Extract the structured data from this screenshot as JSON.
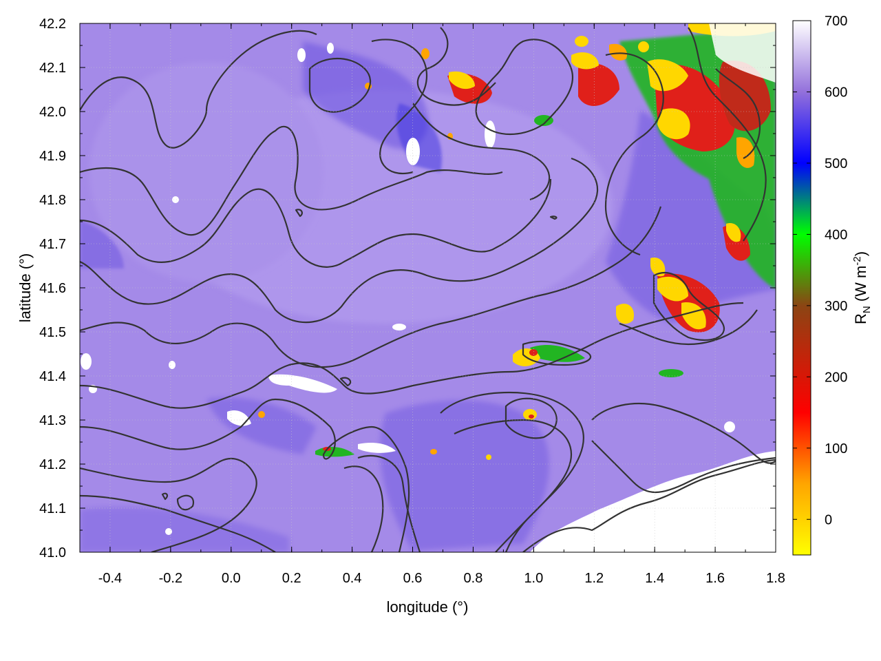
{
  "chart_data": {
    "type": "heatmap",
    "title": "",
    "xlabel": "longitude (°)",
    "ylabel": "latitude (°)",
    "xlim": [
      -0.5,
      1.8
    ],
    "ylim": [
      41.0,
      42.2
    ],
    "x_ticks": [
      "-0.4",
      "-0.2",
      "0.0",
      "0.2",
      "0.4",
      "0.6",
      "0.8",
      "1.0",
      "1.2",
      "1.4",
      "1.6",
      "1.8"
    ],
    "x_tick_values": [
      -0.4,
      -0.2,
      0.0,
      0.2,
      0.4,
      0.6,
      0.8,
      1.0,
      1.2,
      1.4,
      1.6,
      1.8
    ],
    "y_ticks": [
      "41.0",
      "41.1",
      "41.2",
      "41.3",
      "41.4",
      "41.5",
      "41.6",
      "41.7",
      "41.8",
      "41.9",
      "42.0",
      "42.1",
      "42.2"
    ],
    "y_tick_values": [
      41.0,
      41.1,
      41.2,
      41.3,
      41.4,
      41.5,
      41.6,
      41.7,
      41.8,
      41.9,
      42.0,
      42.1,
      42.2
    ],
    "grid": true,
    "overlay": "contour lines",
    "colorbar": {
      "label_main": "R",
      "label_sub": "N",
      "label_unit_open": " (W m",
      "label_unit_sup": "-2",
      "label_unit_close": ")",
      "range": [
        -50,
        700
      ],
      "ticks": [
        "0",
        "100",
        "200",
        "300",
        "400",
        "500",
        "600",
        "700"
      ],
      "tick_values": [
        0,
        100,
        200,
        300,
        400,
        500,
        600,
        700
      ],
      "palette": [
        {
          "value": -50,
          "color": "#ffff00"
        },
        {
          "value": 50,
          "color": "#ffa500"
        },
        {
          "value": 150,
          "color": "#ff0000"
        },
        {
          "value": 300,
          "color": "#8b4513"
        },
        {
          "value": 400,
          "color": "#00ff00"
        },
        {
          "value": 500,
          "color": "#0000ff"
        },
        {
          "value": 600,
          "color": "#9370db"
        },
        {
          "value": 700,
          "color": "#ffffff"
        }
      ]
    },
    "field_summary": {
      "background_value": 610,
      "colors": {
        "background": "#a48ae8",
        "low_flux": "#ffd700",
        "mid_flux": "#e0201a",
        "green_band": "#22b522",
        "blue_band": "#2030e0",
        "missing": "#ffffff",
        "contour": "#333333"
      }
    }
  }
}
